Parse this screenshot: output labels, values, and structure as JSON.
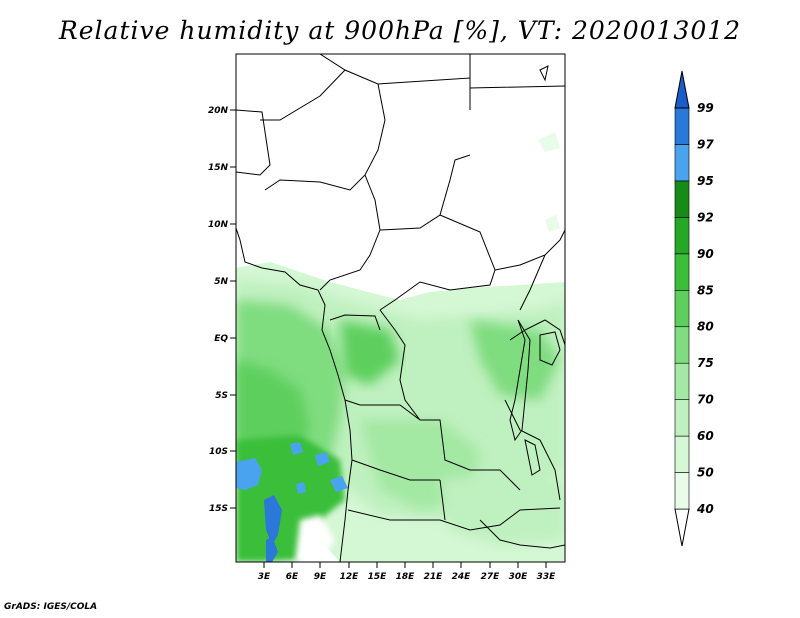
{
  "title": "Relative humidity at 900hPa [%], VT: 2020013012",
  "footer": "GrADS: IGES/COLA",
  "map": {
    "lon_labels": [
      "3E",
      "6E",
      "9E",
      "12E",
      "15E",
      "18E",
      "21E",
      "24E",
      "27E",
      "30E",
      "33E"
    ],
    "lat_labels": [
      "20N",
      "15N",
      "10N",
      "5N",
      "EQ",
      "5S",
      "10S",
      "15S"
    ]
  },
  "colorbar": {
    "levels": [
      "40",
      "50",
      "60",
      "70",
      "75",
      "80",
      "85",
      "90",
      "92",
      "95",
      "97",
      "99"
    ],
    "colors": [
      "#ffffff",
      "#e9fbe9",
      "#d4f7d4",
      "#bff0bf",
      "#a3e8a3",
      "#7fdc7f",
      "#5dcf5d",
      "#3bbf3b",
      "#25a825",
      "#168c16",
      "#4aa3ee",
      "#2a78d8",
      "#1a5cc8"
    ]
  }
}
